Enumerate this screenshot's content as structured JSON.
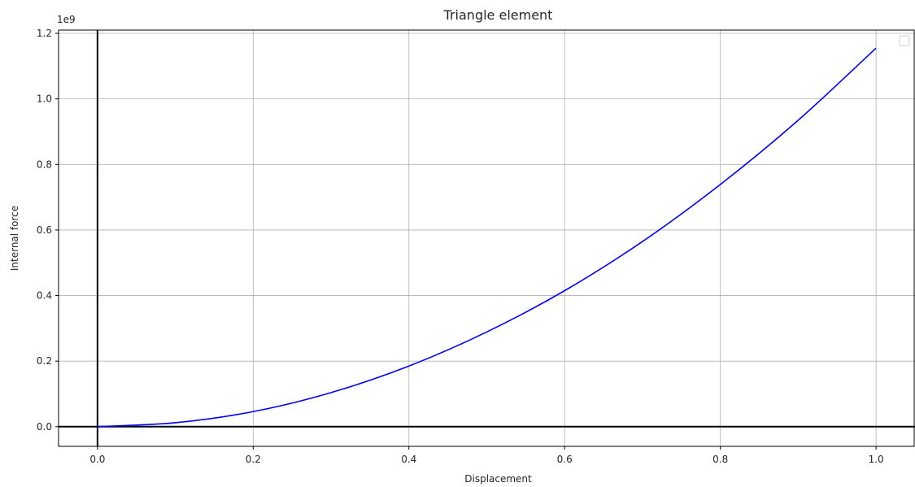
{
  "chart_data": {
    "type": "line",
    "title": "Triangle element",
    "xlabel": "Displacement",
    "ylabel": "Internal force",
    "y_offset_label": "1e9",
    "xlim": [
      -0.05,
      1.05
    ],
    "ylim": [
      -0.06,
      1.21
    ],
    "x_ticks": [
      0.0,
      0.2,
      0.4,
      0.6,
      0.8,
      1.0
    ],
    "x_tick_labels": [
      "0.0",
      "0.2",
      "0.4",
      "0.6",
      "0.8",
      "1.0"
    ],
    "y_ticks": [
      0.0,
      0.2,
      0.4,
      0.6,
      0.8,
      1.0,
      1.2
    ],
    "y_tick_labels": [
      "0.0",
      "0.2",
      "0.4",
      "0.6",
      "0.8",
      "1.0",
      "1.2"
    ],
    "grid": true,
    "legend": "top-right (empty)",
    "series": [
      {
        "color": "#0000ff",
        "x": [
          0.0,
          0.1,
          0.2,
          0.3,
          0.4,
          0.5,
          0.6,
          0.7,
          0.8,
          0.9,
          1.0
        ],
        "y": [
          0.0,
          0.012,
          0.046,
          0.104,
          0.185,
          0.289,
          0.415,
          0.565,
          0.739,
          0.935,
          1.155
        ]
      }
    ],
    "reference_lines": {
      "x0": true,
      "y0": true,
      "color": "#000000"
    }
  }
}
